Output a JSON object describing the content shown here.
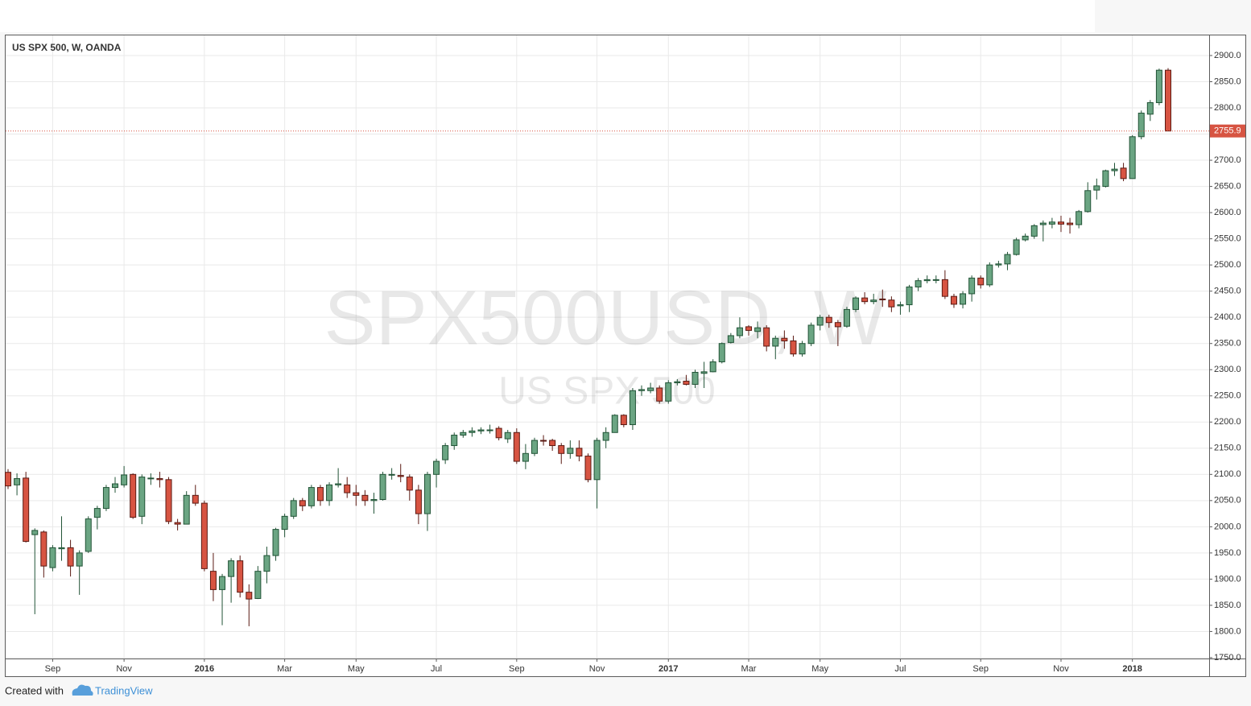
{
  "chart_data": {
    "type": "candlestick",
    "title": "US SPX 500, W, OANDA",
    "watermark": "SPX500USD, W",
    "watermark_subtitle": "US SPX 500",
    "up_color": "#6ba583",
    "up_border": "#225437",
    "down_color": "#d75442",
    "down_border": "#5b1a13",
    "grid": true,
    "ylim": [
      1748.4,
      2938.4
    ],
    "yticks": [
      {
        "value": 1750,
        "label": "1750.0"
      },
      {
        "value": 1800,
        "label": "1800.0"
      },
      {
        "value": 1850,
        "label": "1850.0"
      },
      {
        "value": 1900,
        "label": "1900.0"
      },
      {
        "value": 1950,
        "label": "1950.0"
      },
      {
        "value": 2000,
        "label": "2000.0"
      },
      {
        "value": 2050,
        "label": "2050.0"
      },
      {
        "value": 2100,
        "label": "2100.0"
      },
      {
        "value": 2150,
        "label": "2150.0"
      },
      {
        "value": 2200,
        "label": "2200.0"
      },
      {
        "value": 2250,
        "label": "2250.0"
      },
      {
        "value": 2300,
        "label": "2300.0"
      },
      {
        "value": 2350,
        "label": "2350.0"
      },
      {
        "value": 2400,
        "label": "2400.0"
      },
      {
        "value": 2450,
        "label": "2450.0"
      },
      {
        "value": 2500,
        "label": "2500.0"
      },
      {
        "value": 2550,
        "label": "2550.0"
      },
      {
        "value": 2600,
        "label": "2600.0"
      },
      {
        "value": 2650,
        "label": "2650.0"
      },
      {
        "value": 2700,
        "label": "2700.0"
      },
      {
        "value": 2750,
        "label": "2750.0"
      },
      {
        "value": 2800,
        "label": "2800.0"
      },
      {
        "value": 2850,
        "label": "2850.0"
      },
      {
        "value": 2900,
        "label": "2900.0"
      }
    ],
    "last_price": 2755.9,
    "categories": [
      null,
      null,
      null,
      null,
      null,
      "Sep",
      null,
      null,
      null,
      null,
      null,
      null,
      null,
      "Nov",
      null,
      null,
      null,
      null,
      null,
      null,
      null,
      null,
      "2016",
      null,
      null,
      null,
      null,
      null,
      null,
      null,
      null,
      "Mar",
      null,
      null,
      null,
      null,
      null,
      null,
      null,
      "May",
      null,
      null,
      null,
      null,
      null,
      null,
      null,
      null,
      "Jul",
      null,
      null,
      null,
      null,
      null,
      null,
      null,
      null,
      "Sep",
      null,
      null,
      null,
      null,
      null,
      null,
      null,
      null,
      "Nov",
      null,
      null,
      null,
      null,
      null,
      null,
      null,
      "2017",
      null,
      null,
      null,
      null,
      null,
      null,
      null,
      null,
      "Mar",
      null,
      null,
      null,
      null,
      null,
      null,
      null,
      "May",
      null,
      null,
      null,
      null,
      null,
      null,
      null,
      null,
      "Jul",
      null,
      null,
      null,
      null,
      null,
      null,
      null,
      null,
      "Sep",
      null,
      null,
      null,
      null,
      null,
      null,
      null,
      null,
      "Nov",
      null,
      null,
      null,
      null,
      null,
      null,
      null,
      "2018",
      null,
      null,
      null,
      null
    ],
    "open": [
      2104,
      2080,
      2093,
      1985,
      1990,
      1922,
      1958,
      1960,
      1925,
      1953,
      2018,
      2035,
      2075,
      2080,
      2100,
      2020,
      2092,
      2092,
      2090,
      2008,
      2005,
      2060,
      2045,
      1915,
      1880,
      1905,
      1935,
      1875,
      1863,
      1915,
      1945,
      1995,
      2020,
      2050,
      2040,
      2075,
      2050,
      2080,
      2080,
      2065,
      2060,
      2050,
      2052,
      2100,
      2098,
      2095,
      2070,
      2025,
      2100,
      2128,
      2155,
      2175,
      2180,
      2183,
      2185,
      2188,
      2168,
      2180,
      2125,
      2140,
      2165,
      2165,
      2155,
      2140,
      2150,
      2135,
      2090,
      2165,
      2180,
      2213,
      2195,
      2260,
      2260,
      2265,
      2240,
      2275,
      2278,
      2272,
      2293,
      2296,
      2315,
      2352,
      2365,
      2382,
      2373,
      2380,
      2345,
      2360,
      2355,
      2330,
      2350,
      2385,
      2400,
      2390,
      2383,
      2415,
      2437,
      2430,
      2435,
      2433,
      2422,
      2424,
      2458,
      2470,
      2472,
      2472,
      2440,
      2425,
      2445,
      2475,
      2462,
      2500,
      2502,
      2520,
      2548,
      2555,
      2577,
      2578,
      2582,
      2580,
      2577,
      2602,
      2643,
      2650,
      2680,
      2685,
      2665,
      2745,
      2788,
      2810,
      2872
    ],
    "high": [
      2110,
      2102,
      2105,
      1997,
      1993,
      1965,
      2020,
      1975,
      1955,
      2020,
      2040,
      2080,
      2095,
      2116,
      2102,
      2100,
      2102,
      2105,
      2095,
      2015,
      2068,
      2080,
      2050,
      1950,
      1910,
      1940,
      1945,
      1890,
      1925,
      1962,
      1998,
      2025,
      2055,
      2055,
      2080,
      2080,
      2085,
      2112,
      2095,
      2080,
      2070,
      2065,
      2105,
      2112,
      2120,
      2100,
      2080,
      2105,
      2130,
      2160,
      2180,
      2185,
      2190,
      2190,
      2195,
      2192,
      2185,
      2188,
      2158,
      2170,
      2175,
      2168,
      2160,
      2165,
      2165,
      2140,
      2170,
      2190,
      2215,
      2215,
      2265,
      2270,
      2275,
      2270,
      2280,
      2282,
      2290,
      2300,
      2315,
      2320,
      2352,
      2370,
      2400,
      2385,
      2392,
      2385,
      2365,
      2375,
      2365,
      2355,
      2390,
      2405,
      2405,
      2395,
      2420,
      2440,
      2448,
      2445,
      2453,
      2440,
      2430,
      2462,
      2475,
      2480,
      2480,
      2490,
      2445,
      2450,
      2480,
      2480,
      2505,
      2508,
      2525,
      2552,
      2560,
      2578,
      2585,
      2590,
      2594,
      2590,
      2605,
      2658,
      2665,
      2682,
      2695,
      2695,
      2748,
      2795,
      2815,
      2875,
      2876
    ],
    "low": [
      2072,
      2060,
      1970,
      1833,
      1903,
      1915,
      1935,
      1905,
      1870,
      1950,
      1995,
      2030,
      2065,
      2075,
      2015,
      2005,
      2080,
      2075,
      2005,
      1993,
      2005,
      2040,
      1915,
      1858,
      1812,
      1855,
      1865,
      1810,
      1862,
      1892,
      1935,
      1980,
      2015,
      2030,
      2035,
      2040,
      2040,
      2075,
      2055,
      2040,
      2040,
      2025,
      2050,
      2090,
      2085,
      2050,
      2005,
      1992,
      2075,
      2120,
      2147,
      2170,
      2172,
      2177,
      2178,
      2165,
      2160,
      2120,
      2110,
      2135,
      2155,
      2145,
      2120,
      2130,
      2125,
      2085,
      2035,
      2150,
      2180,
      2190,
      2185,
      2250,
      2255,
      2235,
      2235,
      2270,
      2270,
      2265,
      2265,
      2295,
      2312,
      2350,
      2360,
      2365,
      2360,
      2335,
      2320,
      2340,
      2325,
      2325,
      2345,
      2375,
      2380,
      2345,
      2380,
      2410,
      2425,
      2425,
      2420,
      2410,
      2405,
      2410,
      2450,
      2465,
      2465,
      2435,
      2418,
      2417,
      2430,
      2455,
      2458,
      2495,
      2490,
      2518,
      2545,
      2550,
      2545,
      2570,
      2563,
      2560,
      2570,
      2600,
      2625,
      2648,
      2670,
      2660,
      2665,
      2740,
      2775,
      2805,
      2755.9
    ],
    "close": [
      2078,
      2092,
      1972,
      1993,
      1925,
      1960,
      1960,
      1925,
      1950,
      2015,
      2035,
      2075,
      2082,
      2099,
      2018,
      2095,
      2093,
      2090,
      2010,
      2005,
      2060,
      2045,
      1920,
      1880,
      1905,
      1935,
      1875,
      1862,
      1915,
      1945,
      1995,
      2020,
      2050,
      2040,
      2075,
      2050,
      2080,
      2082,
      2065,
      2060,
      2050,
      2052,
      2100,
      2100,
      2096,
      2070,
      2025,
      2100,
      2125,
      2155,
      2175,
      2180,
      2183,
      2185,
      2185,
      2170,
      2180,
      2125,
      2140,
      2165,
      2164,
      2155,
      2140,
      2150,
      2135,
      2090,
      2165,
      2180,
      2213,
      2195,
      2260,
      2262,
      2265,
      2240,
      2275,
      2277,
      2272,
      2295,
      2296,
      2315,
      2350,
      2365,
      2380,
      2375,
      2380,
      2345,
      2360,
      2355,
      2330,
      2350,
      2385,
      2400,
      2390,
      2382,
      2415,
      2437,
      2430,
      2433,
      2434,
      2420,
      2424,
      2458,
      2470,
      2472,
      2472,
      2440,
      2425,
      2445,
      2475,
      2462,
      2500,
      2502,
      2520,
      2548,
      2555,
      2575,
      2580,
      2582,
      2578,
      2577,
      2602,
      2642,
      2651,
      2680,
      2683,
      2665,
      2745,
      2790,
      2810,
      2872,
      2755.9
    ]
  },
  "footer": {
    "text": "Created with",
    "brand": "TradingView"
  }
}
